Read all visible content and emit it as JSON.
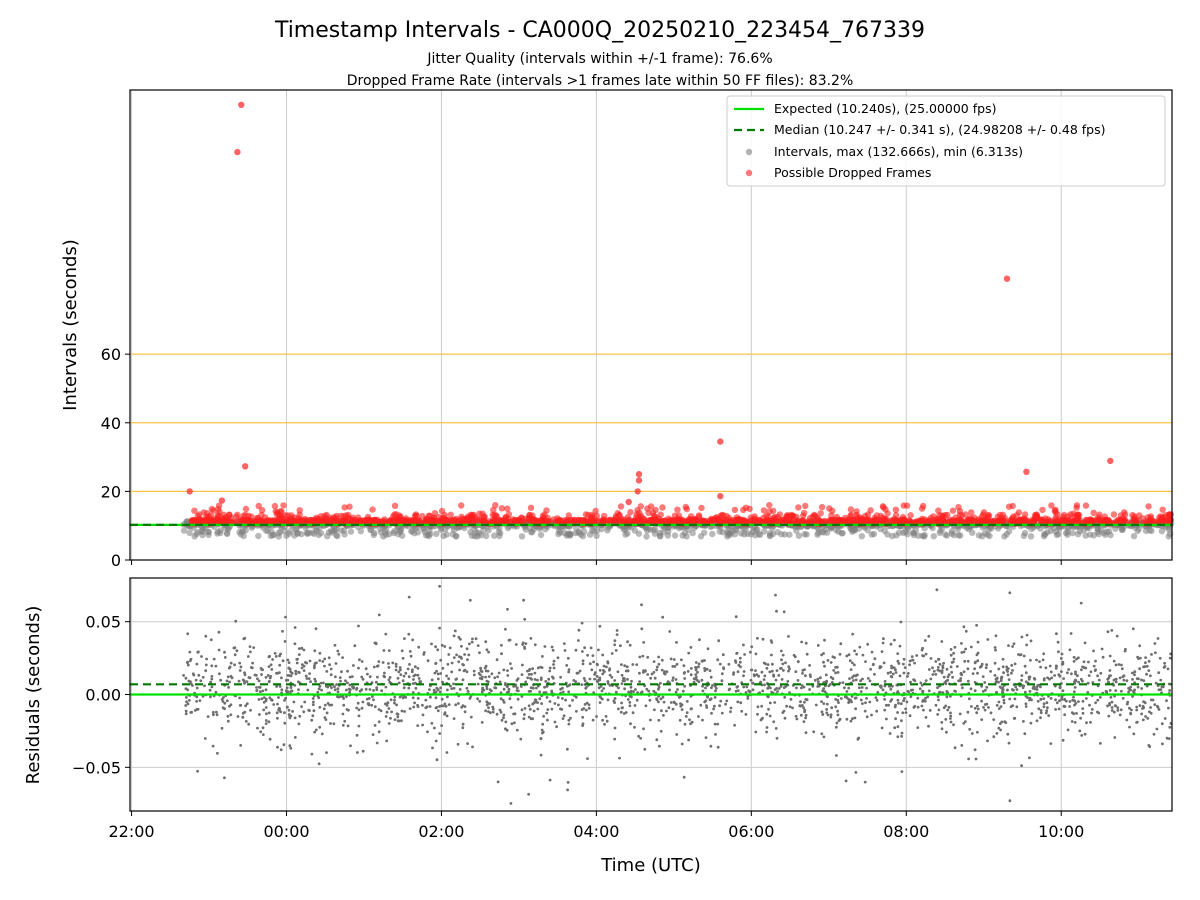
{
  "figure": {
    "title": "Timestamp Intervals - CA000Q_20250210_223454_767339",
    "subtitle_1": "Jitter Quality (intervals within +/-1 frame): 76.6%",
    "subtitle_2": "Dropped Frame Rate (intervals >1 frames late within 50 FF files): 83.2%",
    "xlabel": "Time (UTC)"
  },
  "colors": {
    "expected": "#00e000",
    "median": "#007a00",
    "intervals": "#808080",
    "dropped": "#ff2020",
    "threshold": "#ffc04d",
    "grid": "#cccccc",
    "residual_points": "#6e6e6e"
  },
  "legend": {
    "expected": "Expected (10.240s), (25.00000 fps)",
    "median": "Median (10.247 +/- 0.341 s), (24.98208 +/- 0.48 fps)",
    "intervals": "Intervals, max (132.666s), min (6.313s)",
    "dropped": "Possible Dropped Frames"
  },
  "chart_data": [
    {
      "type": "scatter",
      "ylabel": "Intervals (seconds)",
      "ylim": [
        0,
        137
      ],
      "yticks": [
        "0",
        "20",
        "40",
        "60"
      ],
      "ytick_values": [
        0,
        20,
        40,
        60
      ],
      "xlim_hours": [
        -2.02,
        11.43
      ],
      "grid": "vertical",
      "legend_position": "top-right",
      "expected_interval": 10.24,
      "median_interval": 10.247,
      "threshold_lines": [
        20,
        40,
        60
      ],
      "interval_range": {
        "min": 6.313,
        "max": 132.666
      },
      "series": [
        {
          "name": "Intervals, max (132.666s), min (6.313s)",
          "points_note": "dense band around 10.24 s from ~22:40 to ~11:25"
        },
        {
          "name": "Possible Dropped Frames",
          "outliers": [
            {
              "x": "23:25",
              "y": 132.7
            },
            {
              "x": "23:22",
              "y": 118.9
            },
            {
              "x": "09:18",
              "y": 82.0
            },
            {
              "x": "05:36",
              "y": 34.5
            },
            {
              "x": "10:38",
              "y": 28.9
            },
            {
              "x": "23:28",
              "y": 27.3
            },
            {
              "x": "09:33",
              "y": 25.7
            },
            {
              "x": "04:33",
              "y": 25.0
            },
            {
              "x": "04:33",
              "y": 23.2
            },
            {
              "x": "22:45",
              "y": 20.0
            },
            {
              "x": "04:32",
              "y": 20.0
            },
            {
              "x": "05:36",
              "y": 18.6
            },
            {
              "x": "04:25",
              "y": 16.9
            },
            {
              "x": "23:10",
              "y": 17.3
            }
          ]
        }
      ]
    },
    {
      "type": "scatter",
      "ylabel": "Residuals (seconds)",
      "ylim": [
        -0.08,
        0.08
      ],
      "yticks": [
        "0.05",
        "0.00",
        "−0.05"
      ],
      "ytick_values": [
        0.05,
        0.0,
        -0.05
      ],
      "xticks": [
        "22:00",
        "00:00",
        "02:00",
        "04:00",
        "06:00",
        "08:00",
        "10:00"
      ],
      "xtick_hours": [
        -2,
        0,
        2,
        4,
        6,
        8,
        10
      ],
      "xlim_hours": [
        -2.02,
        11.43
      ],
      "grid": "both",
      "expected_residual": 0.0,
      "median_residual": 0.007,
      "residual_spread_note": "points scattered mostly within +/-0.03 s, a few reaching +/-0.08 s"
    }
  ]
}
